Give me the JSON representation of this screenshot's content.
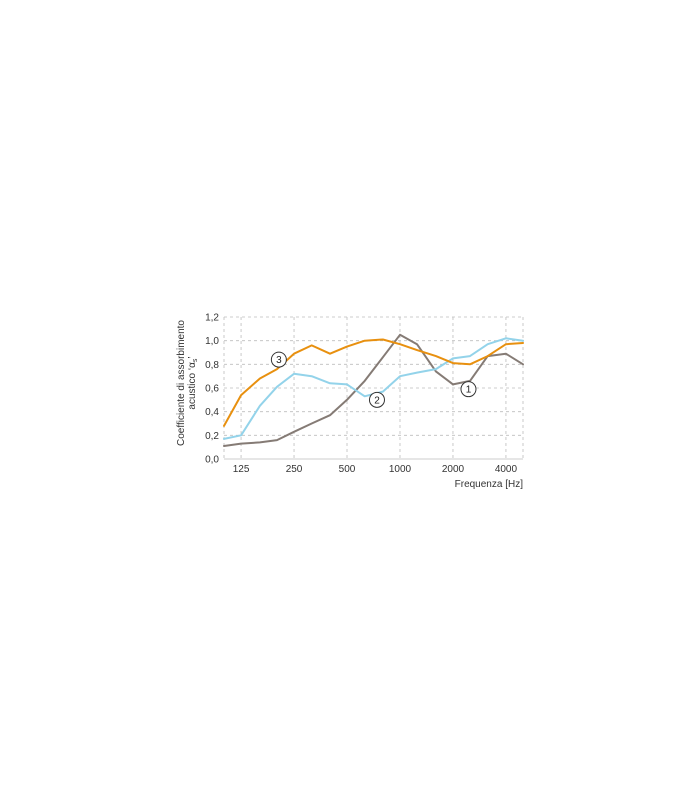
{
  "chart_data": {
    "type": "line",
    "xlabel": "Frequenza [Hz]",
    "ylabel_line1": "Coefficiente di assorbimento",
    "ylabel_line2": "acustico ‘α",
    "ylabel_sub": "s",
    "ylabel_end": "’",
    "x_scale": "log2",
    "x_ticks": [
      125,
      250,
      500,
      1000,
      2000,
      4000
    ],
    "x_tick_labels": [
      "125",
      "250",
      "500",
      "1000",
      "2000",
      "4000"
    ],
    "xlim": [
      100,
      5000
    ],
    "ylim": [
      0,
      1.2
    ],
    "y_ticks": [
      0,
      0.2,
      0.4,
      0.6,
      0.8,
      1.0,
      1.2
    ],
    "y_tick_labels": [
      "0,0",
      "0,2",
      "0,4",
      "0,6",
      "0,8",
      "1,0",
      "1,2"
    ],
    "grid": true,
    "x": [
      100,
      125,
      160,
      200,
      250,
      315,
      400,
      500,
      630,
      800,
      1000,
      1250,
      1600,
      2000,
      2500,
      3150,
      4000,
      5000
    ],
    "series": [
      {
        "name": "1",
        "color": "#857b75",
        "values": [
          0.11,
          0.13,
          0.14,
          0.16,
          0.23,
          0.3,
          0.37,
          0.5,
          0.66,
          0.86,
          1.05,
          0.97,
          0.74,
          0.63,
          0.66,
          0.87,
          0.89,
          0.8
        ]
      },
      {
        "name": "2",
        "color": "#93d3ea",
        "values": [
          0.17,
          0.2,
          0.45,
          0.61,
          0.72,
          0.7,
          0.64,
          0.63,
          0.53,
          0.57,
          0.7,
          0.73,
          0.76,
          0.85,
          0.87,
          0.97,
          1.02,
          1.0
        ]
      },
      {
        "name": "3",
        "color": "#e8900f",
        "values": [
          0.28,
          0.54,
          0.68,
          0.76,
          0.89,
          0.96,
          0.89,
          0.95,
          1.0,
          1.01,
          0.97,
          0.92,
          0.87,
          0.81,
          0.8,
          0.87,
          0.97,
          0.98
        ]
      }
    ],
    "markers": [
      {
        "label": "1",
        "x": 2450,
        "y": 0.59
      },
      {
        "label": "2",
        "x": 740,
        "y": 0.5
      },
      {
        "label": "3",
        "x": 205,
        "y": 0.84
      }
    ]
  }
}
